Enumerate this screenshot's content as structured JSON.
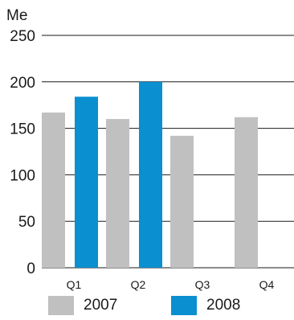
{
  "chart_data": {
    "type": "bar",
    "ylabel": "Me",
    "ylim": [
      0,
      250
    ],
    "yticks": [
      0,
      50,
      100,
      150,
      200,
      250
    ],
    "grid": true,
    "categories": [
      "Q1",
      "Q2",
      "Q3",
      "Q4"
    ],
    "series": [
      {
        "name": "2007",
        "color": "#c0c0c0",
        "values": [
          167,
          160,
          142,
          162
        ]
      },
      {
        "name": "2008",
        "color": "#0a8fd0",
        "values": [
          184,
          200,
          null,
          null
        ]
      }
    ],
    "legend_position": "bottom"
  }
}
